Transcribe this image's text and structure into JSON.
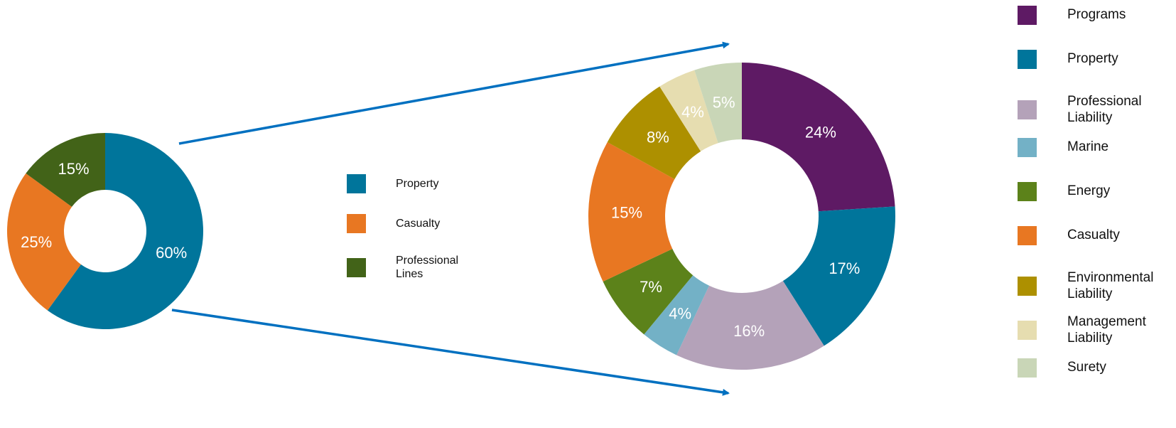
{
  "chart_data": [
    {
      "type": "pie",
      "variant": "donut",
      "categories": [
        "Property",
        "Casualty",
        "Professional Lines"
      ],
      "values": [
        60,
        25,
        15
      ],
      "labels": [
        "60%",
        "25%",
        "15%"
      ],
      "colors": [
        "#00759b",
        "#e87722",
        "#426318"
      ],
      "legend_labels": [
        "Property",
        "Casualty",
        "Professional Lines"
      ],
      "legend_position": "right"
    },
    {
      "type": "pie",
      "variant": "donut",
      "categories": [
        "Programs",
        "Property",
        "Professional Liability",
        "Marine",
        "Energy",
        "Casualty",
        "Environmental Liability",
        "Management Liability",
        "Surety"
      ],
      "values": [
        24,
        17,
        16,
        4,
        7,
        15,
        8,
        4,
        5
      ],
      "labels": [
        "24%",
        "17%",
        "16%",
        "4%",
        "7%",
        "15%",
        "8%",
        "4%",
        "5%"
      ],
      "colors": [
        "#5e1a64",
        "#00759b",
        "#b4a2b9",
        "#73b1c6",
        "#5c821a",
        "#e87722",
        "#ad9000",
        "#e6ddb0",
        "#c9d6b7"
      ],
      "legend_labels": [
        "Programs",
        "Property",
        "Professional Liability",
        "Marine",
        "Energy",
        "Casualty",
        "Environmental Liability",
        "Management Liability",
        "Surety"
      ],
      "legend_position": "right"
    }
  ],
  "arrow_color": "#0070c0"
}
